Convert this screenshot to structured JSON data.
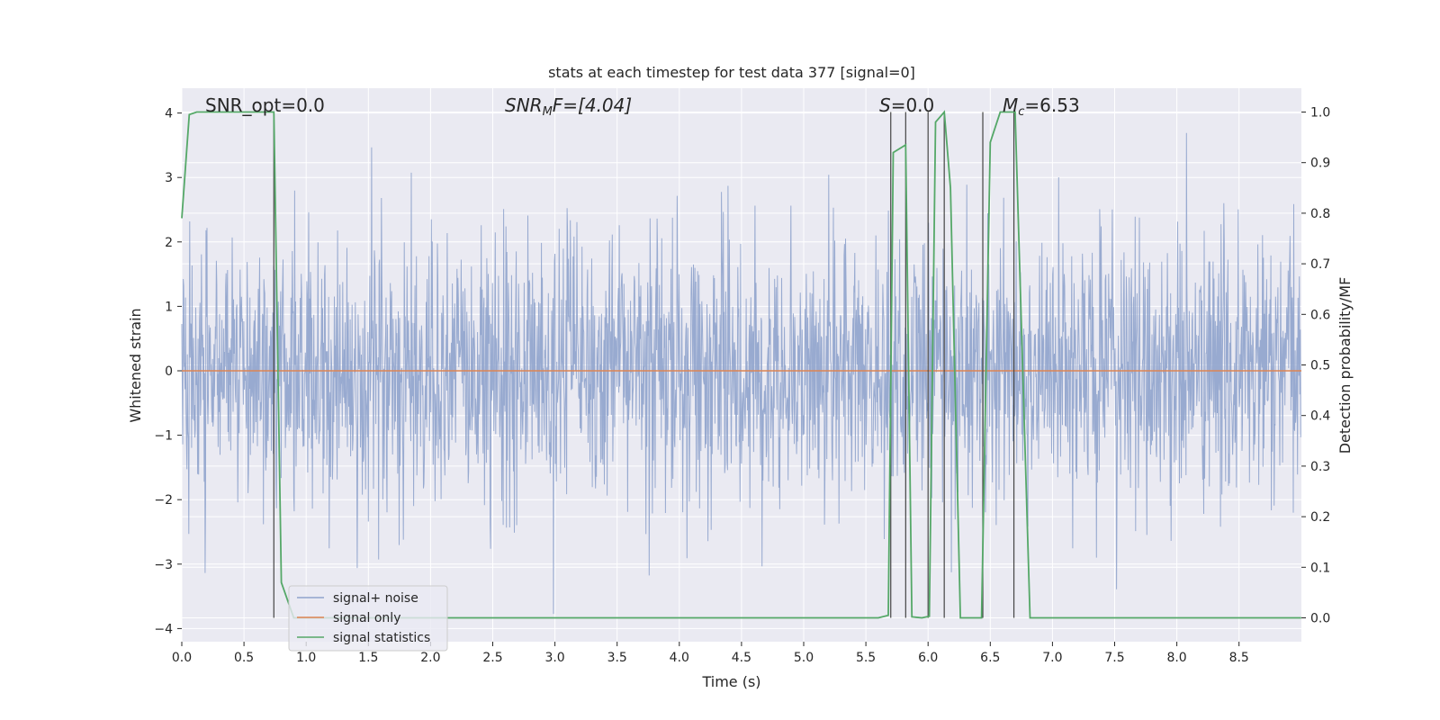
{
  "chart_data": {
    "type": "line",
    "title": "stats at each timestep for test data 377 [signal=0]",
    "xlabel": "Time (s)",
    "ylabel_left": "Whitened strain",
    "ylabel_right": "Detection probability/MF",
    "xlim": [
      0.0,
      9.0
    ],
    "ylim_left": [
      -4.3,
      4.4
    ],
    "ylim_right": [
      -0.05,
      1.035
    ],
    "x_ticks": [
      "0.0",
      "0.5",
      "1.0",
      "1.5",
      "2.0",
      "2.5",
      "3.0",
      "3.5",
      "4.0",
      "4.5",
      "5.0",
      "5.5",
      "6.0",
      "6.5",
      "7.0",
      "7.5",
      "8.0",
      "8.5"
    ],
    "y_ticks_left": [
      "4",
      "3",
      "2",
      "1",
      "0",
      "−1",
      "−2",
      "−3",
      "−4"
    ],
    "y_ticks_right": [
      "1.0",
      "0.9",
      "0.8",
      "0.7",
      "0.6",
      "0.5",
      "0.4",
      "0.3",
      "0.2",
      "0.1",
      "0.0"
    ],
    "grid": true,
    "legend": {
      "placement": "lower-left",
      "entries": [
        {
          "label": "signal+ noise",
          "color": "#8fa3cc"
        },
        {
          "label": "signal only",
          "color": "#dd8452"
        },
        {
          "label": "signal statistics",
          "color": "#55a868"
        }
      ]
    },
    "annotations": {
      "snr_opt": "SNR_opt=0.0",
      "snr_mf_name": "SNR",
      "snr_mf_sub": "M",
      "snr_mf_tail": "F=[4.04]",
      "s_name": "S",
      "s_value": "=0.0",
      "mc_name": "M",
      "mc_sub": "c",
      "mc_value": "=6.53"
    },
    "series": [
      {
        "name": "signal+ noise",
        "axis": "left",
        "color": "#8fa3cc",
        "description_envelope": {
          "typical_abs": 1.6,
          "max": 4.05,
          "min": -3.85
        }
      },
      {
        "name": "signal only",
        "axis": "left",
        "color": "#dd8452",
        "y": 0
      },
      {
        "name": "signal statistics",
        "axis": "right",
        "color": "#55a868",
        "points": [
          [
            0.0,
            0.79
          ],
          [
            0.06,
            0.995
          ],
          [
            0.12,
            1.0
          ],
          [
            0.74,
            1.0
          ],
          [
            0.8,
            0.07
          ],
          [
            0.9,
            0.0
          ],
          [
            5.6,
            0.0
          ],
          [
            5.68,
            0.005
          ],
          [
            5.72,
            0.92
          ],
          [
            5.82,
            0.935
          ],
          [
            5.87,
            0.002
          ],
          [
            5.95,
            0.0
          ],
          [
            6.01,
            0.003
          ],
          [
            6.06,
            0.98
          ],
          [
            6.13,
            1.0
          ],
          [
            6.18,
            0.85
          ],
          [
            6.26,
            0.0
          ],
          [
            6.43,
            0.0
          ],
          [
            6.5,
            0.94
          ],
          [
            6.58,
            1.0
          ],
          [
            6.7,
            1.0
          ],
          [
            6.82,
            0.0
          ],
          [
            9.0,
            0.0
          ]
        ]
      }
    ],
    "vertical_markers_x": [
      0.74,
      5.7,
      5.82,
      6.0,
      6.13,
      6.44,
      6.69
    ]
  }
}
